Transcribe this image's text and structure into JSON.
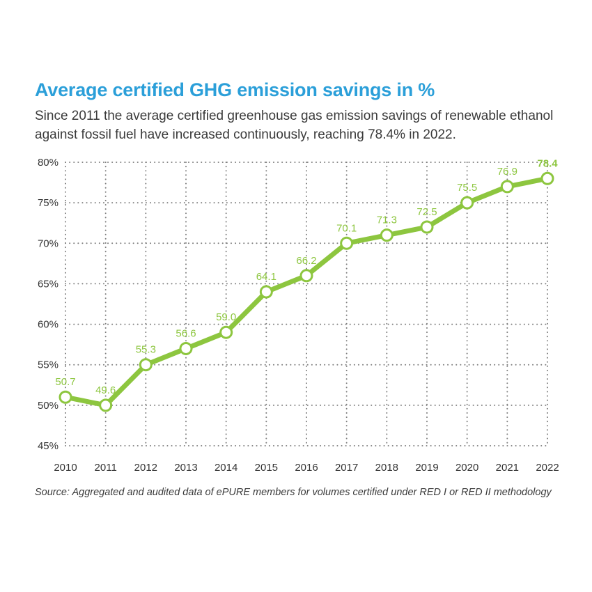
{
  "header": {
    "title": "Average certified GHG emission savings in %",
    "subtitle": "Since 2011 the average certified greenhouse gas emission savings of renewable ethanol against fossil fuel have increased continuously, reaching 78.4% in 2022."
  },
  "footer": {
    "source": "Source: Aggregated and audited data of ePURE members for volumes certified under RED I or RED II methodology"
  },
  "colors": {
    "title": "#2b9fd9",
    "line": "#8dc63f",
    "label": "#8dc63f",
    "grid": "#808080",
    "axis_text": "#333333"
  },
  "chart_data": {
    "type": "line",
    "title": "Average certified GHG emission savings in %",
    "xlabel": "",
    "ylabel": "",
    "ylim": [
      45,
      80
    ],
    "yticks": [
      45,
      50,
      55,
      60,
      65,
      70,
      75,
      80
    ],
    "ytick_labels": [
      "45%",
      "50%",
      "55%",
      "60%",
      "65%",
      "70%",
      "75%",
      "80%"
    ],
    "grid": true,
    "categories": [
      "2010",
      "2011",
      "2012",
      "2013",
      "2014",
      "2015",
      "2016",
      "2017",
      "2018",
      "2019",
      "2020",
      "2021",
      "2022"
    ],
    "series": [
      {
        "name": "Average certified GHG emission savings",
        "values": [
          51,
          50,
          55,
          57,
          59,
          64,
          66,
          70,
          71,
          72,
          75,
          77,
          78
        ],
        "labels": [
          "50.7",
          "49.6",
          "55.3",
          "56.6",
          "59.0",
          "64.1",
          "66.2",
          "70.1",
          "71.3",
          "72.5",
          "75.5",
          "76.9",
          "78.4"
        ],
        "highlight_last_label": true
      }
    ]
  }
}
